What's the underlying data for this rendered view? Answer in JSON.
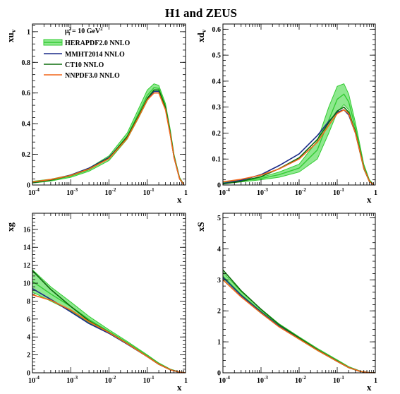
{
  "figure_title": "H1 and ZEUS",
  "legend": {
    "scale_label": "μ",
    "scale_sub": "f",
    "scale_sup": "2",
    "scale_value": " = 10 GeV",
    "scale_value_sup": "2",
    "entries": [
      {
        "name": "HERAPDF2.0 NNLO",
        "color": "#33cc33",
        "fill": "#8fe88f"
      },
      {
        "name": "MMHT2014 NNLO",
        "color": "#1a2a88"
      },
      {
        "name": "CT10 NNLO",
        "color": "#0d6d0d"
      },
      {
        "name": "NNPDF3.0 NNLO",
        "color": "#f2661a"
      }
    ]
  },
  "xtick_base": "10",
  "xtick_exps": [
    "-4",
    "-3",
    "-2",
    "-1"
  ],
  "xtick_one": "1",
  "chart_data": [
    {
      "type": "line",
      "ylabel_main": "xu",
      "ylabel_sub": "v",
      "xlabel": "x",
      "xscale": "log",
      "xlim": [
        0.0001,
        1
      ],
      "ylim": [
        0,
        1.05
      ],
      "yticks": [
        0,
        0.2,
        0.4,
        0.6,
        0.8,
        1
      ],
      "ytick_labels": [
        "0",
        "0.2",
        "0.4",
        "0.6",
        "0.8",
        "1"
      ],
      "x": [
        0.0001,
        0.0003,
        0.001,
        0.003,
        0.01,
        0.03,
        0.06,
        0.1,
        0.15,
        0.2,
        0.3,
        0.4,
        0.5,
        0.7,
        0.9
      ],
      "band": {
        "lower": [
          0.012,
          0.026,
          0.05,
          0.09,
          0.16,
          0.3,
          0.44,
          0.55,
          0.61,
          0.61,
          0.5,
          0.33,
          0.18,
          0.04,
          0.003
        ],
        "upper": [
          0.024,
          0.038,
          0.066,
          0.11,
          0.19,
          0.34,
          0.5,
          0.62,
          0.66,
          0.65,
          0.53,
          0.36,
          0.2,
          0.05,
          0.005
        ]
      },
      "series": [
        {
          "name": "HERAPDF2.0 NNLO",
          "values": [
            0.018,
            0.032,
            0.058,
            0.1,
            0.175,
            0.32,
            0.47,
            0.585,
            0.635,
            0.63,
            0.515,
            0.345,
            0.19,
            0.045,
            0.004
          ]
        },
        {
          "name": "MMHT2014 NNLO",
          "values": [
            0.015,
            0.033,
            0.065,
            0.11,
            0.18,
            0.31,
            0.45,
            0.56,
            0.61,
            0.61,
            0.5,
            0.33,
            0.18,
            0.04,
            0.003
          ]
        },
        {
          "name": "CT10 NNLO",
          "values": [
            0.016,
            0.032,
            0.062,
            0.105,
            0.175,
            0.315,
            0.455,
            0.565,
            0.62,
            0.62,
            0.505,
            0.335,
            0.185,
            0.042,
            0.003
          ]
        },
        {
          "name": "NNPDF3.0 NNLO",
          "values": [
            0.02,
            0.036,
            0.062,
            0.104,
            0.172,
            0.305,
            0.445,
            0.555,
            0.6,
            0.6,
            0.49,
            0.325,
            0.18,
            0.04,
            0.003
          ]
        }
      ]
    },
    {
      "type": "line",
      "ylabel_main": "xd",
      "ylabel_sub": "v",
      "xlabel": "x",
      "xscale": "log",
      "xlim": [
        0.0001,
        1
      ],
      "ylim": [
        0,
        0.62
      ],
      "yticks": [
        0,
        0.1,
        0.2,
        0.3,
        0.4,
        0.5,
        0.6
      ],
      "ytick_labels": [
        "0",
        "0.1",
        "0.2",
        "0.3",
        "0.4",
        "0.5",
        "0.6"
      ],
      "x": [
        0.0001,
        0.0003,
        0.001,
        0.003,
        0.01,
        0.03,
        0.06,
        0.1,
        0.15,
        0.2,
        0.3,
        0.4,
        0.5,
        0.7,
        0.9
      ],
      "band": {
        "lower": [
          0.005,
          0.012,
          0.02,
          0.03,
          0.05,
          0.1,
          0.2,
          0.28,
          0.31,
          0.29,
          0.2,
          0.12,
          0.06,
          0.012,
          0.002
        ],
        "upper": [
          0.012,
          0.02,
          0.03,
          0.05,
          0.08,
          0.17,
          0.3,
          0.38,
          0.39,
          0.35,
          0.24,
          0.15,
          0.08,
          0.02,
          0.003
        ]
      },
      "series": [
        {
          "name": "HERAPDF2.0 NNLO",
          "values": [
            0.008,
            0.016,
            0.025,
            0.04,
            0.065,
            0.135,
            0.25,
            0.33,
            0.35,
            0.32,
            0.22,
            0.135,
            0.07,
            0.016,
            0.0025
          ]
        },
        {
          "name": "MMHT2014 NNLO",
          "values": [
            0.006,
            0.018,
            0.04,
            0.075,
            0.12,
            0.19,
            0.245,
            0.28,
            0.29,
            0.27,
            0.2,
            0.125,
            0.065,
            0.014,
            0.002
          ]
        },
        {
          "name": "CT10 NNLO",
          "values": [
            0.004,
            0.014,
            0.032,
            0.063,
            0.105,
            0.175,
            0.24,
            0.285,
            0.3,
            0.28,
            0.205,
            0.13,
            0.067,
            0.015,
            0.002
          ]
        },
        {
          "name": "NNPDF3.0 NNLO",
          "values": [
            0.012,
            0.022,
            0.038,
            0.062,
            0.1,
            0.165,
            0.23,
            0.275,
            0.29,
            0.275,
            0.2,
            0.125,
            0.065,
            0.014,
            0.002
          ]
        }
      ]
    },
    {
      "type": "line",
      "ylabel_main": "xg",
      "ylabel_sub": "",
      "xlabel": "x",
      "xscale": "log",
      "xlim": [
        0.0001,
        1
      ],
      "ylim": [
        0,
        17.8
      ],
      "yticks": [
        0,
        2,
        4,
        6,
        8,
        10,
        12,
        14,
        16
      ],
      "ytick_labels": [
        "0",
        "2",
        "4",
        "6",
        "8",
        "10",
        "12",
        "14",
        "16"
      ],
      "x": [
        0.0001,
        0.0003,
        0.001,
        0.003,
        0.01,
        0.03,
        0.1,
        0.2,
        0.4,
        0.7,
        1.0
      ],
      "band": {
        "lower": [
          9.0,
          8.0,
          6.9,
          5.6,
          4.4,
          3.2,
          1.8,
          0.95,
          0.35,
          0.06,
          0.0
        ],
        "upper": [
          11.5,
          9.6,
          7.9,
          6.3,
          4.8,
          3.5,
          2.0,
          1.1,
          0.42,
          0.1,
          0.02
        ]
      },
      "series": [
        {
          "name": "HERAPDF2.0 NNLO",
          "values": [
            10.2,
            8.8,
            7.4,
            5.95,
            4.6,
            3.35,
            1.9,
            1.02,
            0.38,
            0.08,
            0.01
          ]
        },
        {
          "name": "MMHT2014 NNLO",
          "values": [
            9.4,
            8.2,
            6.8,
            5.5,
            4.4,
            3.2,
            1.8,
            0.95,
            0.35,
            0.07,
            0.0
          ]
        },
        {
          "name": "CT10 NNLO",
          "values": [
            11.4,
            9.3,
            7.4,
            5.8,
            4.5,
            3.25,
            1.8,
            0.95,
            0.35,
            0.07,
            0.0
          ]
        },
        {
          "name": "NNPDF3.0 NNLO",
          "values": [
            8.7,
            8.1,
            7.0,
            5.7,
            4.5,
            3.25,
            1.8,
            0.95,
            0.35,
            0.07,
            0.0
          ]
        }
      ]
    },
    {
      "type": "line",
      "ylabel_main": "xS",
      "ylabel_sub": "",
      "xlabel": "x",
      "xscale": "log",
      "xlim": [
        0.0001,
        1
      ],
      "ylim": [
        0,
        5.15
      ],
      "yticks": [
        0,
        1,
        2,
        3,
        4,
        5
      ],
      "ytick_labels": [
        "0",
        "1",
        "2",
        "3",
        "4",
        "5"
      ],
      "x": [
        0.0001,
        0.0003,
        0.001,
        0.003,
        0.01,
        0.03,
        0.1,
        0.2,
        0.4,
        0.7,
        1.0
      ],
      "band": {
        "lower": [
          3.0,
          2.45,
          1.92,
          1.48,
          1.08,
          0.72,
          0.36,
          0.16,
          0.04,
          0.004,
          0.0
        ],
        "upper": [
          3.25,
          2.62,
          2.06,
          1.58,
          1.16,
          0.79,
          0.42,
          0.2,
          0.06,
          0.01,
          0.0
        ]
      },
      "series": [
        {
          "name": "HERAPDF2.0 NNLO",
          "values": [
            3.12,
            2.53,
            1.99,
            1.53,
            1.12,
            0.75,
            0.39,
            0.18,
            0.05,
            0.007,
            0.0
          ]
        },
        {
          "name": "MMHT2014 NNLO",
          "values": [
            3.08,
            2.5,
            1.96,
            1.5,
            1.1,
            0.74,
            0.37,
            0.17,
            0.045,
            0.005,
            0.0
          ]
        },
        {
          "name": "CT10 NNLO",
          "values": [
            3.32,
            2.65,
            2.05,
            1.55,
            1.13,
            0.75,
            0.38,
            0.17,
            0.045,
            0.005,
            0.0
          ]
        },
        {
          "name": "NNPDF3.0 NNLO",
          "values": [
            3.0,
            2.45,
            1.93,
            1.48,
            1.09,
            0.73,
            0.37,
            0.17,
            0.045,
            0.005,
            0.0
          ]
        }
      ]
    }
  ]
}
